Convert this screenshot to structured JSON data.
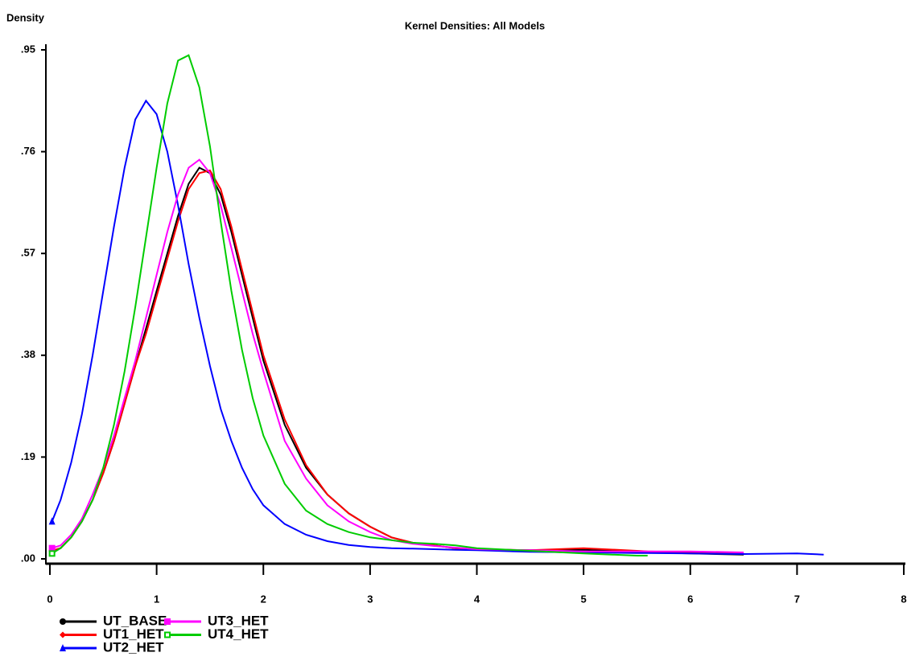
{
  "chart_data": {
    "type": "line",
    "title": "Kernel Densities: All Models",
    "y_label": "Density",
    "x": [
      0.02,
      0.1,
      0.2,
      0.3,
      0.4,
      0.5,
      0.6,
      0.7,
      0.8,
      0.9,
      1.0,
      1.1,
      1.2,
      1.3,
      1.4,
      1.5,
      1.6,
      1.7,
      1.8,
      1.9,
      2.0,
      2.2,
      2.4,
      2.6,
      2.8,
      3.0,
      3.2,
      3.4,
      3.6,
      3.8,
      4.0,
      4.5,
      5.0,
      5.5,
      5.6,
      6.0,
      6.5,
      7.0,
      7.25
    ],
    "series": [
      {
        "name": "UT_BASE",
        "color": "#000000",
        "marker": "circle",
        "values": [
          0.015,
          0.02,
          0.04,
          0.07,
          0.11,
          0.16,
          0.22,
          0.29,
          0.36,
          0.43,
          0.5,
          0.57,
          0.64,
          0.7,
          0.73,
          0.72,
          0.68,
          0.61,
          0.53,
          0.45,
          0.37,
          0.25,
          0.17,
          0.12,
          0.085,
          0.06,
          0.04,
          0.03,
          0.025,
          0.02,
          0.018,
          0.016,
          0.017,
          0.013,
          0.012,
          0.01,
          0.008,
          null,
          null
        ]
      },
      {
        "name": "UT1_HET",
        "color": "#ff0000",
        "marker": "diamond",
        "values": [
          0.015,
          0.02,
          0.04,
          0.07,
          0.11,
          0.16,
          0.22,
          0.29,
          0.36,
          0.42,
          0.49,
          0.56,
          0.63,
          0.69,
          0.72,
          0.725,
          0.69,
          0.62,
          0.54,
          0.46,
          0.38,
          0.26,
          0.175,
          0.12,
          0.085,
          0.06,
          0.04,
          0.03,
          0.025,
          0.02,
          0.018,
          0.016,
          0.02,
          0.015,
          0.014,
          0.012,
          0.01,
          null,
          null
        ]
      },
      {
        "name": "UT2_HET",
        "color": "#0000ff",
        "marker": "triangle",
        "values": [
          0.07,
          0.11,
          0.18,
          0.27,
          0.38,
          0.5,
          0.62,
          0.73,
          0.82,
          0.855,
          0.83,
          0.76,
          0.66,
          0.55,
          0.45,
          0.36,
          0.28,
          0.22,
          0.17,
          0.13,
          0.1,
          0.065,
          0.045,
          0.033,
          0.026,
          0.022,
          0.02,
          0.019,
          0.018,
          0.017,
          0.016,
          0.013,
          0.012,
          0.011,
          0.011,
          0.01,
          0.009,
          0.01,
          0.008
        ]
      },
      {
        "name": "UT3_HET",
        "color": "#ff00ff",
        "marker": "square",
        "values": [
          0.02,
          0.025,
          0.045,
          0.075,
          0.12,
          0.17,
          0.23,
          0.3,
          0.37,
          0.45,
          0.53,
          0.61,
          0.68,
          0.73,
          0.745,
          0.72,
          0.66,
          0.58,
          0.5,
          0.42,
          0.35,
          0.22,
          0.15,
          0.1,
          0.07,
          0.05,
          0.035,
          0.028,
          0.024,
          0.021,
          0.018,
          0.016,
          0.014,
          0.014,
          0.014,
          0.014,
          0.012,
          null,
          null
        ]
      },
      {
        "name": "UT4_HET",
        "color": "#00cc00",
        "marker": "open-square",
        "values": [
          0.01,
          0.02,
          0.04,
          0.07,
          0.11,
          0.17,
          0.25,
          0.35,
          0.47,
          0.6,
          0.73,
          0.85,
          0.93,
          0.94,
          0.88,
          0.77,
          0.63,
          0.5,
          0.39,
          0.3,
          0.23,
          0.14,
          0.09,
          0.065,
          0.05,
          0.04,
          0.035,
          0.03,
          0.028,
          0.025,
          0.02,
          0.015,
          0.01,
          0.006,
          0.006,
          null,
          null,
          null,
          null
        ]
      }
    ],
    "xlim": [
      0,
      8
    ],
    "ylim": [
      0,
      0.95
    ],
    "xticks": [
      0,
      1,
      2,
      3,
      4,
      5,
      6,
      7,
      8
    ],
    "yticks": [
      {
        "value": 0,
        "label": ".00"
      },
      {
        "value": 0.19,
        "label": ".19"
      },
      {
        "value": 0.38,
        "label": ".38"
      },
      {
        "value": 0.57,
        "label": ".57"
      },
      {
        "value": 0.76,
        "label": ".76"
      },
      {
        "value": 0.95,
        "label": ".95"
      }
    ],
    "legend": "bottom-left",
    "grid": false
  }
}
